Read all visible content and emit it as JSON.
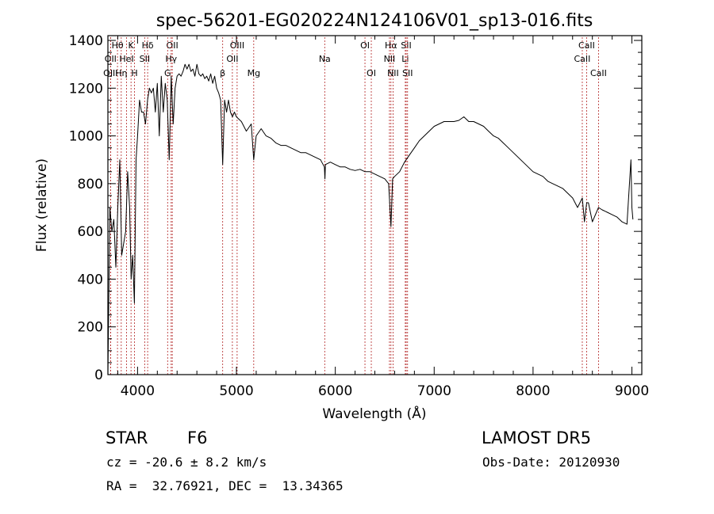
{
  "chart_data": {
    "type": "line",
    "title": "spec-56201-EG020224N124106V01_sp13-016.fits",
    "xlabel": "Wavelength (Å)",
    "ylabel": "Flux (relative)",
    "xlim": [
      3700,
      9100
    ],
    "ylim": [
      0,
      1420
    ],
    "xticks": [
      4000,
      5000,
      6000,
      7000,
      8000,
      9000
    ],
    "yticks": [
      0,
      200,
      400,
      600,
      800,
      1000,
      1200,
      1400
    ],
    "grid": false,
    "series": [
      {
        "x": [
          3700,
          3720,
          3740,
          3760,
          3780,
          3800,
          3820,
          3840,
          3860,
          3880,
          3900,
          3920,
          3935,
          3950,
          3968,
          3985,
          4000,
          4020,
          4040,
          4060,
          4080,
          4101,
          4120,
          4140,
          4160,
          4180,
          4200,
          4220,
          4240,
          4260,
          4280,
          4300,
          4320,
          4340,
          4360,
          4380,
          4400,
          4420,
          4440,
          4460,
          4480,
          4500,
          4520,
          4540,
          4560,
          4580,
          4600,
          4620,
          4640,
          4660,
          4680,
          4700,
          4720,
          4740,
          4760,
          4780,
          4800,
          4820,
          4840,
          4861,
          4880,
          4900,
          4920,
          4940,
          4960,
          4980,
          5000,
          5050,
          5100,
          5150,
          5175,
          5200,
          5250,
          5300,
          5350,
          5400,
          5450,
          5500,
          5550,
          5600,
          5650,
          5700,
          5750,
          5800,
          5850,
          5890,
          5895,
          5900,
          5950,
          6000,
          6050,
          6100,
          6150,
          6200,
          6250,
          6300,
          6350,
          6400,
          6450,
          6500,
          6540,
          6563,
          6580,
          6600,
          6650,
          6700,
          6750,
          6800,
          6850,
          6900,
          6950,
          7000,
          7050,
          7100,
          7150,
          7200,
          7250,
          7300,
          7350,
          7400,
          7450,
          7500,
          7550,
          7600,
          7650,
          7700,
          7750,
          7800,
          7850,
          7900,
          7950,
          8000,
          8050,
          8100,
          8150,
          8200,
          8250,
          8300,
          8350,
          8400,
          8450,
          8498,
          8520,
          8542,
          8560,
          8600,
          8662,
          8700,
          8750,
          8800,
          8850,
          8900,
          8950,
          8990,
          9000,
          9010
        ],
        "y": [
          0,
          700,
          600,
          650,
          450,
          700,
          900,
          500,
          550,
          600,
          850,
          700,
          400,
          500,
          300,
          900,
          1000,
          1150,
          1100,
          1100,
          1050,
          1150,
          1200,
          1180,
          1200,
          1100,
          1220,
          1000,
          1250,
          1100,
          1220,
          1150,
          900,
          1250,
          1050,
          1200,
          1250,
          1260,
          1250,
          1270,
          1300,
          1280,
          1300,
          1270,
          1280,
          1250,
          1300,
          1260,
          1250,
          1260,
          1240,
          1250,
          1230,
          1260,
          1220,
          1250,
          1200,
          1180,
          1150,
          880,
          1150,
          1100,
          1150,
          1100,
          1080,
          1100,
          1080,
          1060,
          1020,
          1050,
          900,
          1000,
          1030,
          1000,
          990,
          970,
          960,
          960,
          950,
          940,
          930,
          930,
          920,
          910,
          900,
          870,
          820,
          880,
          890,
          880,
          870,
          870,
          860,
          855,
          860,
          850,
          850,
          840,
          830,
          820,
          800,
          620,
          820,
          830,
          850,
          890,
          920,
          950,
          980,
          1000,
          1020,
          1040,
          1050,
          1060,
          1060,
          1060,
          1065,
          1080,
          1060,
          1060,
          1050,
          1040,
          1020,
          1000,
          990,
          970,
          950,
          930,
          910,
          890,
          870,
          850,
          840,
          830,
          810,
          800,
          790,
          780,
          760,
          740,
          700,
          740,
          640,
          720,
          720,
          640,
          700,
          690,
          680,
          670,
          660,
          640,
          630,
          900,
          700,
          650
        ]
      }
    ],
    "line_markers": [
      {
        "label": "Hθ",
        "x": 3797,
        "row": 0
      },
      {
        "label": "K",
        "x": 3934,
        "row": 0
      },
      {
        "label": "Hδ",
        "x": 4102,
        "row": 0
      },
      {
        "label": "OII",
        "x": 4351,
        "row": 0
      },
      {
        "label": "OIII",
        "x": 5007,
        "row": 0
      },
      {
        "label": "OI",
        "x": 6300,
        "row": 0
      },
      {
        "label": "Hα",
        "x": 6563,
        "row": 0
      },
      {
        "label": "SII",
        "x": 6717,
        "row": 0
      },
      {
        "label": "CaII",
        "x": 8542,
        "row": 0
      },
      {
        "label": "OII",
        "x": 3727,
        "row": 1
      },
      {
        "label": "HeI",
        "x": 3889,
        "row": 1
      },
      {
        "label": "SII",
        "x": 4072,
        "row": 1
      },
      {
        "label": "Hγ",
        "x": 4340,
        "row": 1
      },
      {
        "label": "OII",
        "x": 4959,
        "row": 1
      },
      {
        "label": "Na",
        "x": 5893,
        "row": 1
      },
      {
        "label": "NII",
        "x": 6548,
        "row": 1
      },
      {
        "label": "Li",
        "x": 6708,
        "row": 1
      },
      {
        "label": "CaII",
        "x": 8498,
        "row": 1
      },
      {
        "label": "OIII",
        "x": 3727,
        "row": 2
      },
      {
        "label": "Hη",
        "x": 3835,
        "row": 2
      },
      {
        "label": "H",
        "x": 3969,
        "row": 2
      },
      {
        "label": "G",
        "x": 4304,
        "row": 2
      },
      {
        "label": "β",
        "x": 4861,
        "row": 2
      },
      {
        "label": "Mg",
        "x": 5175,
        "row": 2
      },
      {
        "label": "OI",
        "x": 6364,
        "row": 2
      },
      {
        "label": "NII",
        "x": 6584,
        "row": 2
      },
      {
        "label": "SII",
        "x": 6731,
        "row": 2
      },
      {
        "label": "CaII",
        "x": 8662,
        "row": 2
      }
    ]
  },
  "footer": {
    "object_type": "STAR",
    "subclass": "F6",
    "survey": "LAMOST DR5",
    "redshift": "cz = -20.6 ± 8.2 km/s",
    "obs_date": "Obs-Date: 20120930",
    "coords": "RA =  32.76921, DEC =  13.34365"
  },
  "colors": {
    "spectrum": "#000000",
    "marker_lines": "#b22222"
  }
}
